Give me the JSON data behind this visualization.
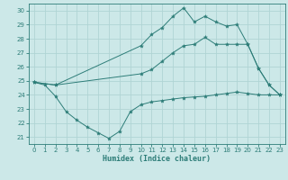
{
  "xlabel": "Humidex (Indice chaleur)",
  "background_color": "#cce8e8",
  "grid_color": "#b0d4d4",
  "line_color": "#2d7d78",
  "xlim": [
    -0.5,
    23.5
  ],
  "ylim": [
    20.5,
    30.5
  ],
  "xticks": [
    0,
    1,
    2,
    3,
    4,
    5,
    6,
    7,
    8,
    9,
    10,
    11,
    12,
    13,
    14,
    15,
    16,
    17,
    18,
    19,
    20,
    21,
    22,
    23
  ],
  "yticks": [
    21,
    22,
    23,
    24,
    25,
    26,
    27,
    28,
    29,
    30
  ],
  "line1_x": [
    0,
    1,
    2,
    3,
    4,
    5,
    6,
    7,
    8,
    9,
    10,
    11,
    12,
    13,
    14,
    15,
    16,
    17,
    18,
    19,
    20,
    21,
    22,
    23
  ],
  "line1_y": [
    24.9,
    24.7,
    23.9,
    22.8,
    22.2,
    21.7,
    21.3,
    20.9,
    21.4,
    22.8,
    23.3,
    23.5,
    23.6,
    23.7,
    23.8,
    23.85,
    23.9,
    24.0,
    24.1,
    24.2,
    24.1,
    24.0,
    24.0,
    24.0
  ],
  "line2_x": [
    0,
    2,
    10,
    11,
    12,
    13,
    14,
    15,
    16,
    17,
    18,
    19,
    20,
    21,
    22,
    23
  ],
  "line2_y": [
    24.9,
    24.7,
    25.5,
    25.8,
    26.4,
    27.0,
    27.5,
    27.6,
    28.1,
    27.6,
    27.6,
    27.6,
    27.6,
    25.9,
    24.7,
    24.0
  ],
  "line3_x": [
    0,
    2,
    10,
    11,
    12,
    13,
    14,
    15,
    16,
    17,
    18,
    19,
    20,
    21,
    22,
    23
  ],
  "line3_y": [
    24.9,
    24.7,
    27.5,
    28.3,
    28.8,
    29.6,
    30.2,
    29.2,
    29.6,
    29.2,
    28.9,
    29.0,
    27.6,
    25.9,
    24.7,
    24.0
  ]
}
